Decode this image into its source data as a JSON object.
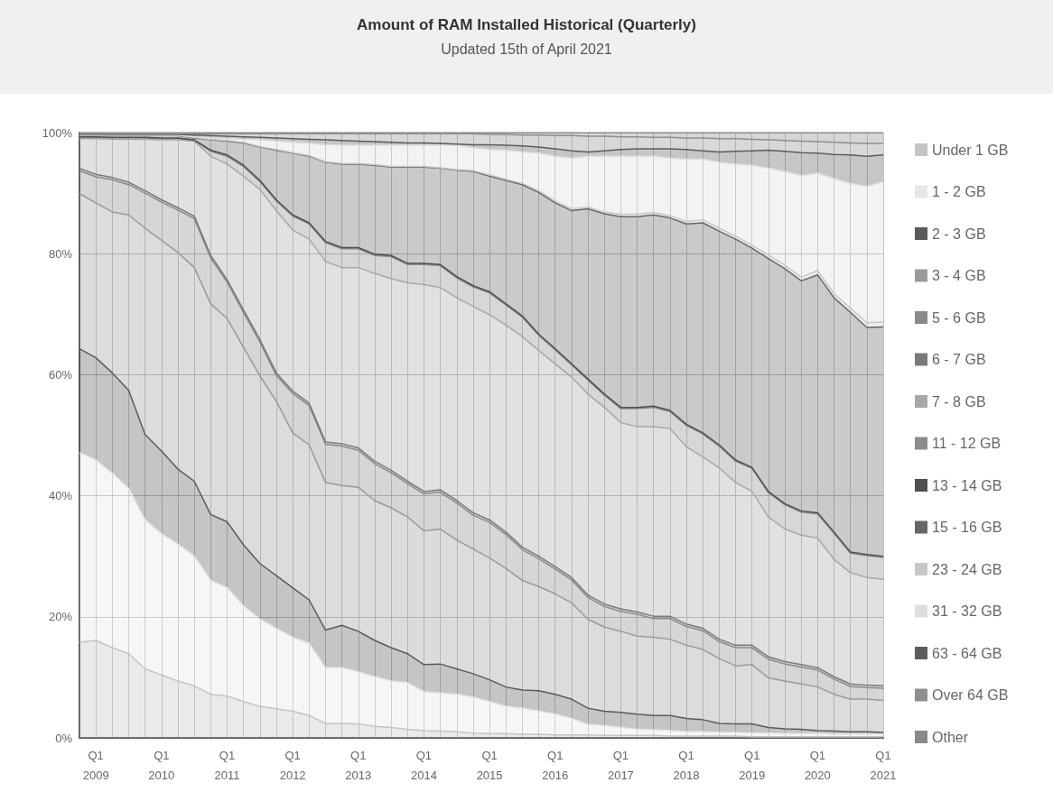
{
  "chart_data": {
    "type": "area",
    "title": "Amount of RAM Installed Historical (Quarterly)",
    "subtitle": "Updated 15th of April 2021",
    "categories": [
      null,
      "Q1\n2009",
      null,
      null,
      null,
      "Q1\n2010",
      null,
      null,
      null,
      "Q1\n2011",
      null,
      null,
      null,
      "Q1\n2012",
      null,
      null,
      null,
      "Q1\n2013",
      null,
      null,
      null,
      "Q1\n2014",
      null,
      null,
      null,
      "Q1\n2015",
      null,
      null,
      null,
      "Q1\n2016",
      null,
      null,
      null,
      "Q1\n2017",
      null,
      null,
      null,
      "Q1\n2018",
      null,
      null,
      null,
      "Q1\n2019",
      null,
      null,
      null,
      "Q1\n2020",
      null,
      null,
      null,
      "Q1\n2021"
    ],
    "stacked": true,
    "series": [
      {
        "name": "Under 1 GB",
        "color": "#c4c4c4",
        "values": [
          15.8,
          16.1,
          14.9,
          13.9,
          11.4,
          10.4,
          9.4,
          8.6,
          7.2,
          6.9,
          6.0,
          5.2,
          4.8,
          4.4,
          3.7,
          2.4,
          2.4,
          2.3,
          1.9,
          1.7,
          1.4,
          1.2,
          1.1,
          1.0,
          0.8,
          0.7,
          0.7,
          0.6,
          0.6,
          0.5,
          0.5,
          0.5,
          0.4,
          0.4,
          0.4,
          0.4,
          0.3,
          0.3,
          0.3,
          0.3,
          0.3,
          0.2,
          0.2,
          0.2,
          0.2,
          0.2,
          0.2,
          0.2,
          0.2,
          0.2
        ]
      },
      {
        "name": "1 - 2 GB",
        "color": "#e6e6e6",
        "values": [
          31.3,
          29.8,
          28.8,
          27.3,
          24.6,
          23.3,
          22.6,
          21.4,
          18.8,
          17.9,
          15.8,
          14.4,
          13.3,
          12.2,
          11.9,
          9.2,
          9.2,
          8.6,
          8.2,
          7.7,
          7.7,
          6.4,
          6.3,
          6.2,
          5.9,
          5.3,
          4.5,
          4.3,
          3.8,
          3.4,
          2.7,
          1.7,
          1.6,
          1.3,
          1.0,
          0.9,
          0.9,
          0.7,
          0.7,
          0.6,
          0.6,
          0.6,
          0.6,
          0.5,
          0.5,
          0.5,
          0.4,
          0.4,
          0.4,
          0.4
        ]
      },
      {
        "name": "2 - 3 GB",
        "color": "#5a5a5a",
        "values": [
          17.2,
          16.9,
          16.6,
          16.2,
          14.1,
          13.7,
          12.4,
          12.4,
          10.9,
          10.9,
          10.1,
          9.2,
          8.7,
          8.2,
          7.2,
          6.2,
          7.0,
          6.7,
          6.0,
          5.5,
          4.8,
          4.5,
          4.8,
          4.2,
          3.9,
          3.6,
          3.2,
          3.0,
          3.4,
          3.3,
          3.2,
          2.7,
          2.4,
          2.5,
          2.5,
          2.4,
          2.5,
          2.2,
          2.0,
          1.5,
          1.4,
          1.5,
          0.9,
          0.8,
          0.7,
          0.5,
          0.5,
          0.4,
          0.4,
          0.3
        ]
      },
      {
        "name": "3 - 4 GB",
        "color": "#9a9a9a",
        "values": [
          25.6,
          25.6,
          26.6,
          29.0,
          34.1,
          34.8,
          35.8,
          35.3,
          34.8,
          33.6,
          32.6,
          31.0,
          28.8,
          25.6,
          25.6,
          24.4,
          23.1,
          23.8,
          23.1,
          23.1,
          22.6,
          22.1,
          22.3,
          21.3,
          20.6,
          20.1,
          19.6,
          18.1,
          17.2,
          16.6,
          15.9,
          14.7,
          13.9,
          13.4,
          12.9,
          12.9,
          12.6,
          12.1,
          11.6,
          10.7,
          9.6,
          9.8,
          8.2,
          7.9,
          7.5,
          7.2,
          6.1,
          5.4,
          5.4,
          5.3
        ]
      },
      {
        "name": "5 - 6 GB",
        "color": "#8a8a8a",
        "values": [
          3.8,
          4.3,
          5.3,
          5.0,
          5.8,
          6.3,
          7.0,
          8.1,
          7.6,
          6.0,
          5.8,
          5.6,
          4.3,
          6.5,
          6.5,
          6.3,
          6.5,
          6.1,
          6.1,
          5.8,
          5.5,
          6.1,
          6.1,
          6.1,
          5.6,
          5.9,
          5.6,
          5.1,
          4.6,
          4.1,
          3.8,
          3.6,
          3.4,
          3.3,
          3.6,
          3.1,
          3.4,
          3.1,
          3.1,
          2.8,
          3.0,
          2.8,
          3.1,
          2.8,
          2.8,
          2.8,
          2.5,
          2.1,
          1.9,
          2.0
        ]
      },
      {
        "name": "6 - 7 GB",
        "color": "#7a7a7a",
        "values": [
          0.4,
          0.4,
          0.4,
          0.4,
          0.4,
          0.4,
          0.4,
          0.4,
          0.4,
          0.4,
          0.4,
          0.4,
          0.4,
          0.4,
          0.4,
          0.4,
          0.4,
          0.4,
          0.4,
          0.4,
          0.4,
          0.4,
          0.4,
          0.4,
          0.4,
          0.4,
          0.4,
          0.4,
          0.4,
          0.4,
          0.4,
          0.4,
          0.4,
          0.4,
          0.4,
          0.4,
          0.4,
          0.4,
          0.4,
          0.4,
          0.4,
          0.4,
          0.4,
          0.4,
          0.4,
          0.4,
          0.4,
          0.4,
          0.4,
          0.4
        ]
      },
      {
        "name": "7 - 8 GB",
        "color": "#a8a8a8",
        "values": [
          4.9,
          5.9,
          6.3,
          7.1,
          8.5,
          9.9,
          11.2,
          12.4,
          16.4,
          19.1,
          22.1,
          24.8,
          26.8,
          26.6,
          27.1,
          29.8,
          29.1,
          29.8,
          31.0,
          31.7,
          32.8,
          34.2,
          33.4,
          33.5,
          34.1,
          33.9,
          34.2,
          34.8,
          34.0,
          33.5,
          33.1,
          33.2,
          32.5,
          30.8,
          30.6,
          31.3,
          31.0,
          29.3,
          28.3,
          28.3,
          26.9,
          25.4,
          23.1,
          21.9,
          21.4,
          21.4,
          19.4,
          18.4,
          17.8,
          17.6
        ]
      },
      {
        "name": "11 - 12 GB",
        "color": "#8c8c8c",
        "values": [
          0.2,
          0.2,
          0.2,
          0.2,
          0.2,
          0.2,
          0.2,
          0.1,
          0.8,
          1.3,
          1.6,
          1.3,
          1.6,
          2.3,
          2.5,
          3.1,
          3.1,
          3.1,
          3.0,
          3.6,
          3.0,
          3.3,
          3.6,
          3.3,
          3.2,
          3.6,
          3.3,
          3.2,
          2.5,
          2.3,
          2.0,
          2.3,
          2.0,
          2.3,
          3.0,
          3.2,
          2.8,
          3.5,
          3.8,
          3.6,
          3.5,
          3.8,
          4.0,
          4.0,
          3.8,
          4.0,
          4.3,
          3.2,
          3.6,
          3.6
        ]
      },
      {
        "name": "13 - 14 GB",
        "color": "#505050",
        "values": [
          0.1,
          0.1,
          0.1,
          0.1,
          0.1,
          0.1,
          0.1,
          0.1,
          0.2,
          0.2,
          0.2,
          0.2,
          0.2,
          0.2,
          0.2,
          0.2,
          0.2,
          0.2,
          0.2,
          0.2,
          0.2,
          0.2,
          0.2,
          0.2,
          0.2,
          0.2,
          0.2,
          0.2,
          0.2,
          0.2,
          0.2,
          0.2,
          0.2,
          0.2,
          0.2,
          0.2,
          0.2,
          0.2,
          0.2,
          0.2,
          0.2,
          0.2,
          0.2,
          0.2,
          0.2,
          0.2,
          0.2,
          0.2,
          0.2,
          0.2
        ]
      },
      {
        "name": "15 - 16 GB",
        "color": "#666666",
        "values": [
          0.2,
          0.2,
          0.3,
          0.3,
          0.3,
          0.4,
          0.4,
          0.3,
          1.7,
          2.3,
          3.7,
          5.5,
          8.2,
          10.2,
          11.0,
          13.1,
          13.8,
          13.8,
          14.7,
          14.6,
          15.9,
          15.9,
          15.9,
          17.6,
          18.9,
          19.1,
          20.4,
          21.7,
          23.4,
          24.1,
          25.3,
          28.1,
          29.8,
          31.5,
          31.5,
          31.6,
          31.8,
          33.1,
          34.7,
          35.3,
          36.5,
          36.2,
          38.5,
          38.8,
          38.0,
          39.3,
          38.7,
          39.6,
          37.5,
          37.9
        ]
      },
      {
        "name": "23 - 24 GB",
        "color": "#c8c8c8",
        "values": [
          0.1,
          0.1,
          0.1,
          0.1,
          0.1,
          0.1,
          0.1,
          0.1,
          0.1,
          0.1,
          0.1,
          0.1,
          0.1,
          0.1,
          0.1,
          0.1,
          0.1,
          0.1,
          0.1,
          0.1,
          0.1,
          0.1,
          0.1,
          0.1,
          0.1,
          0.2,
          0.2,
          0.2,
          0.3,
          0.3,
          0.3,
          0.3,
          0.3,
          0.4,
          0.4,
          0.4,
          0.4,
          0.4,
          0.5,
          0.5,
          0.5,
          0.5,
          0.6,
          0.6,
          0.6,
          0.7,
          0.7,
          0.7,
          0.8,
          0.8
        ]
      },
      {
        "name": "31 - 32 GB",
        "color": "#dedede",
        "values": [
          0,
          0,
          0,
          0,
          0,
          0,
          0,
          0.1,
          0.2,
          0.3,
          0.5,
          1.1,
          1.4,
          1.7,
          2.0,
          2.8,
          3.0,
          3.0,
          3.2,
          3.5,
          3.5,
          3.5,
          3.7,
          4.0,
          3.8,
          4.2,
          4.8,
          5.2,
          6.2,
          7.4,
          8.4,
          8.4,
          9.2,
          9.6,
          9.6,
          9.3,
          9.5,
          10.3,
          10.0,
          10.9,
          11.9,
          13.2,
          14.3,
          15.5,
          16.8,
          16.1,
          19.0,
          20.6,
          22.5,
          23.2
        ]
      },
      {
        "name": "63 - 64 GB",
        "color": "#5c5c5c",
        "values": [
          0.1,
          0.1,
          0.1,
          0.1,
          0.1,
          0.1,
          0.1,
          0.3,
          0.4,
          0.4,
          0.4,
          0.4,
          0.5,
          0.6,
          0.7,
          0.8,
          0.8,
          0.7,
          0.6,
          0.5,
          0.4,
          0.4,
          0.3,
          0.2,
          0.5,
          0.8,
          0.8,
          1.0,
          1.0,
          1.2,
          1.2,
          0.7,
          0.9,
          1.1,
          1.2,
          1.2,
          1.5,
          1.6,
          1.4,
          1.7,
          2.1,
          2.4,
          3.0,
          3.3,
          3.8,
          3.3,
          4.0,
          4.7,
          5.0,
          4.4
        ]
      },
      {
        "name": "Over 64 GB",
        "color": "#8e8e8e",
        "values": [
          0.1,
          0.1,
          0.1,
          0.1,
          0.1,
          0.1,
          0.1,
          0.2,
          0.3,
          0.4,
          0.5,
          0.6,
          0.7,
          0.8,
          0.9,
          1.0,
          1.1,
          1.2,
          1.3,
          1.4,
          1.5,
          1.5,
          1.6,
          1.7,
          1.8,
          1.7,
          1.8,
          1.8,
          2.0,
          2.2,
          2.5,
          2.6,
          2.4,
          2.1,
          2.0,
          1.9,
          1.9,
          1.9,
          2.1,
          2.2,
          2.1,
          1.9,
          1.7,
          1.8,
          1.9,
          1.9,
          2.0,
          2.0,
          2.1,
          1.9
        ]
      },
      {
        "name": "Other",
        "color": "#8a8a8a",
        "values": [
          0.2,
          0.2,
          0.2,
          0.2,
          0.2,
          0.2,
          0.2,
          0.2,
          0.2,
          0.2,
          0.2,
          0.2,
          0.2,
          0.2,
          0.2,
          0.2,
          0.2,
          0.2,
          0.2,
          0.2,
          0.2,
          0.2,
          0.2,
          0.2,
          0.2,
          0.3,
          0.3,
          0.4,
          0.4,
          0.5,
          0.5,
          0.6,
          0.6,
          0.7,
          0.7,
          0.8,
          0.8,
          0.9,
          0.9,
          1.0,
          1.0,
          1.1,
          1.2,
          1.3,
          1.4,
          1.5,
          1.6,
          1.7,
          1.8,
          1.8
        ]
      }
    ],
    "ylim": [
      0,
      100
    ],
    "yticks": [
      {
        "value": 0,
        "label": "0%"
      },
      {
        "value": 20,
        "label": "20%"
      },
      {
        "value": 40,
        "label": "40%"
      },
      {
        "value": 60,
        "label": "60%"
      },
      {
        "value": 80,
        "label": "80%"
      },
      {
        "value": 100,
        "label": "100%"
      }
    ],
    "grid": true,
    "legend": "right"
  }
}
